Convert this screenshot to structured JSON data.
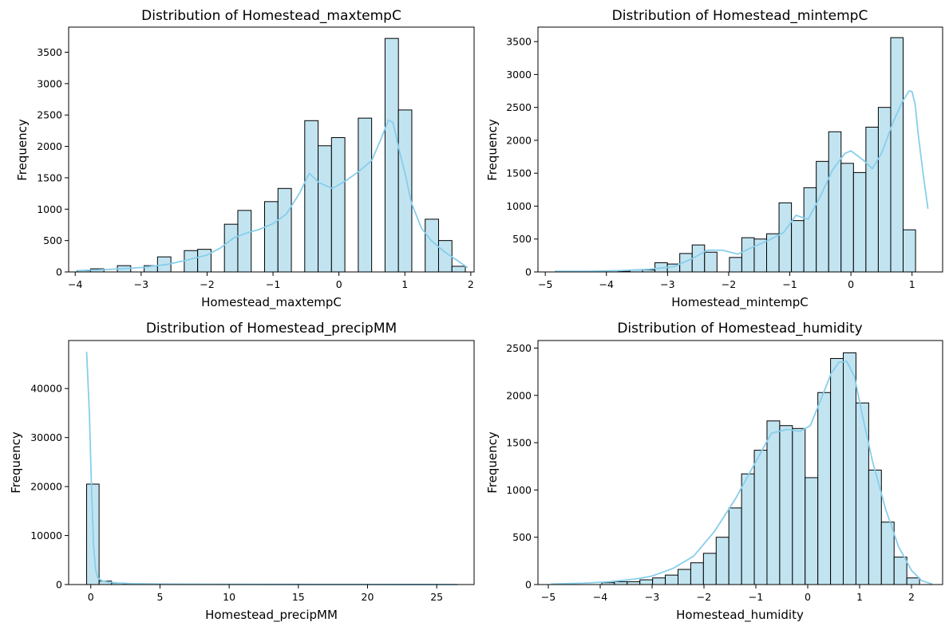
{
  "chart_data": [
    {
      "type": "bar",
      "title": "Distribution of Homestead_maxtempC",
      "xlabel": "Homestead_maxtempC",
      "ylabel": "Frequency",
      "xlim": [
        -4.1,
        2.05
      ],
      "ylim": [
        0,
        3900
      ],
      "xticks": [
        -4,
        -3,
        -2,
        -1,
        0,
        1,
        2
      ],
      "xtick_labels": [
        "−4",
        "−3",
        "−2",
        "−1",
        "0",
        "1",
        "2"
      ],
      "yticks": [
        0,
        500,
        1000,
        1500,
        2000,
        2500,
        3000,
        3500
      ],
      "yticks_labels": [
        "0",
        "500",
        "1000",
        "1500",
        "2000",
        "2500",
        "3000",
        "3500"
      ],
      "bin_edges": [
        -3.97,
        -3.767,
        -3.564,
        -3.361,
        -3.158,
        -2.955,
        -2.752,
        -2.549,
        -2.346,
        -2.143,
        -1.94,
        -1.737,
        -1.534,
        -1.331,
        -1.128,
        -0.925,
        -0.722,
        -0.519,
        -0.316,
        -0.113,
        0.09,
        0.293,
        0.496,
        0.699,
        0.902,
        1.105,
        1.308,
        1.511,
        1.714,
        1.917
      ],
      "counts": [
        20,
        50,
        0,
        100,
        0,
        100,
        240,
        0,
        340,
        360,
        0,
        760,
        980,
        0,
        1120,
        1330,
        0,
        2410,
        2010,
        2140,
        0,
        2450,
        0,
        3720,
        2580,
        0,
        840,
        500,
        90
      ],
      "kde": {
        "x": [
          -3.97,
          -3.5,
          -3.0,
          -2.6,
          -2.3,
          -2.0,
          -1.8,
          -1.6,
          -1.4,
          -1.2,
          -1.0,
          -0.8,
          -0.6,
          -0.45,
          -0.3,
          -0.1,
          0.1,
          0.3,
          0.5,
          0.65,
          0.75,
          0.82,
          0.9,
          1.0,
          1.1,
          1.25,
          1.4,
          1.6,
          1.8,
          1.95
        ],
        "y": [
          20,
          40,
          70,
          120,
          190,
          270,
          380,
          540,
          620,
          680,
          770,
          920,
          1250,
          1570,
          1420,
          1330,
          1450,
          1600,
          1780,
          2150,
          2420,
          2380,
          2000,
          1580,
          1100,
          700,
          500,
          320,
          180,
          70
        ]
      }
    },
    {
      "type": "bar",
      "title": "Distribution of Homestead_mintempC",
      "xlabel": "Homestead_mintempC",
      "ylabel": "Frequency",
      "xlim": [
        -5.12,
        1.5
      ],
      "ylim": [
        0,
        3720
      ],
      "xticks": [
        -5,
        -4,
        -3,
        -2,
        -1,
        0,
        1
      ],
      "xtick_labels": [
        "−5",
        "−4",
        "−3",
        "−2",
        "−1",
        "0",
        "1"
      ],
      "yticks": [
        0,
        500,
        1000,
        1500,
        2000,
        2500,
        3000,
        3500
      ],
      "yticks_labels": [
        "0",
        "500",
        "1000",
        "1500",
        "2000",
        "2500",
        "3000",
        "3500"
      ],
      "bin_edges": [
        -4.83,
        -4.627,
        -4.424,
        -4.221,
        -4.018,
        -3.815,
        -3.612,
        -3.409,
        -3.206,
        -3.003,
        -2.8,
        -2.597,
        -2.394,
        -2.191,
        -1.988,
        -1.785,
        -1.582,
        -1.379,
        -1.176,
        -0.973,
        -0.77,
        -0.567,
        -0.364,
        -0.161,
        0.042,
        0.245,
        0.448,
        0.651,
        0.854,
        1.057,
        1.26
      ],
      "counts": [
        10,
        0,
        0,
        10,
        0,
        10,
        30,
        30,
        140,
        120,
        280,
        410,
        300,
        0,
        220,
        520,
        500,
        580,
        1050,
        780,
        1280,
        1680,
        2130,
        1650,
        1510,
        2200,
        2500,
        3560,
        640,
        0
      ],
      "kde": {
        "x": [
          -4.83,
          -4.3,
          -3.8,
          -3.3,
          -2.9,
          -2.6,
          -2.35,
          -2.1,
          -1.85,
          -1.6,
          -1.35,
          -1.1,
          -0.9,
          -0.7,
          -0.5,
          -0.3,
          -0.1,
          0.0,
          0.2,
          0.35,
          0.5,
          0.7,
          0.85,
          0.95,
          1.0,
          1.05,
          1.1,
          1.18,
          1.26
        ],
        "y": [
          10,
          10,
          20,
          40,
          80,
          200,
          330,
          330,
          270,
          380,
          480,
          600,
          860,
          800,
          1150,
          1550,
          1800,
          1840,
          1700,
          1570,
          1800,
          2300,
          2600,
          2750,
          2740,
          2550,
          2100,
          1500,
          960
        ]
      }
    },
    {
      "type": "bar",
      "title": "Distribution of Homestead_precipMM",
      "xlabel": "Homestead_precipMM",
      "ylabel": "Frequency",
      "xlim": [
        -1.6,
        27.7
      ],
      "ylim": [
        0,
        49800
      ],
      "xticks": [
        0,
        5,
        10,
        15,
        20,
        25
      ],
      "xtick_labels": [
        "0",
        "5",
        "10",
        "15",
        "20",
        "25"
      ],
      "yticks": [
        0,
        10000,
        20000,
        30000,
        40000
      ],
      "yticks_labels": [
        "0",
        "10000",
        "20000",
        "30000",
        "40000"
      ],
      "bin_edges": [
        -0.3,
        0.6,
        1.5,
        2.4,
        3.3,
        4.2,
        5.1,
        6.0,
        6.9,
        7.8,
        8.7,
        9.6,
        10.5,
        11.4,
        12.3,
        13.2,
        14.1,
        15.0,
        15.9,
        16.8,
        17.7,
        18.6,
        19.5,
        20.4,
        21.3,
        22.2,
        23.1,
        24.0,
        24.9,
        25.8,
        26.7
      ],
      "counts": [
        20500,
        700,
        300,
        150,
        100,
        70,
        50,
        40,
        30,
        20,
        20,
        15,
        10,
        10,
        10,
        5,
        5,
        5,
        5,
        5,
        3,
        3,
        3,
        2,
        2,
        2,
        2,
        1,
        1,
        1
      ],
      "kde": {
        "x": [
          -0.3,
          -0.1,
          0.05,
          0.2,
          0.35,
          0.5,
          0.8,
          1.2,
          2.0,
          3.0,
          5.0,
          8.0,
          12.0,
          16.0,
          20.0,
          24.0,
          26.5
        ],
        "y": [
          47500,
          35000,
          20000,
          8000,
          3000,
          1400,
          800,
          500,
          300,
          180,
          100,
          60,
          40,
          25,
          15,
          8,
          5
        ]
      }
    },
    {
      "type": "bar",
      "title": "Distribution of Homestead_humidity",
      "xlabel": "Homestead_humidity",
      "ylabel": "Frequency",
      "xlim": [
        -5.2,
        2.6
      ],
      "ylim": [
        0,
        2580
      ],
      "xticks": [
        -5,
        -4,
        -3,
        -2,
        -1,
        0,
        1,
        2
      ],
      "xtick_labels": [
        "−5",
        "−4",
        "−3",
        "−2",
        "−1",
        "0",
        "1",
        "2"
      ],
      "yticks": [
        0,
        500,
        1000,
        1500,
        2000,
        2500
      ],
      "yticks_labels": [
        "0",
        "500",
        "1000",
        "1500",
        "2000",
        "2500"
      ],
      "bin_edges": [
        -4.95,
        -4.705,
        -4.46,
        -4.215,
        -3.97,
        -3.725,
        -3.48,
        -3.235,
        -2.99,
        -2.745,
        -2.5,
        -2.255,
        -2.01,
        -1.765,
        -1.52,
        -1.275,
        -1.03,
        -0.785,
        -0.54,
        -0.295,
        -0.05,
        0.195,
        0.44,
        0.685,
        0.93,
        1.175,
        1.42,
        1.665,
        1.91,
        2.155,
        2.4
      ],
      "counts": [
        0,
        0,
        0,
        0,
        20,
        30,
        30,
        50,
        70,
        100,
        160,
        230,
        330,
        500,
        810,
        1170,
        1420,
        1730,
        1680,
        1650,
        1130,
        2030,
        2390,
        2450,
        1920,
        1210,
        660,
        290,
        70,
        0
      ],
      "kde": {
        "x": [
          -4.95,
          -4.3,
          -3.8,
          -3.3,
          -3.0,
          -2.6,
          -2.2,
          -1.8,
          -1.4,
          -1.0,
          -0.7,
          -0.4,
          -0.15,
          0.05,
          0.25,
          0.45,
          0.6,
          0.75,
          0.9,
          1.05,
          1.25,
          1.5,
          1.75,
          2.0,
          2.2,
          2.4
        ],
        "y": [
          5,
          15,
          30,
          60,
          90,
          170,
          300,
          560,
          900,
          1300,
          1600,
          1640,
          1620,
          1680,
          1950,
          2230,
          2350,
          2360,
          2200,
          1800,
          1300,
          800,
          400,
          150,
          40,
          5
        ]
      }
    }
  ],
  "style": {
    "bar_fill": "#c2e4f1",
    "bar_edge": "#000000",
    "kde_color": "#87ceeb"
  }
}
